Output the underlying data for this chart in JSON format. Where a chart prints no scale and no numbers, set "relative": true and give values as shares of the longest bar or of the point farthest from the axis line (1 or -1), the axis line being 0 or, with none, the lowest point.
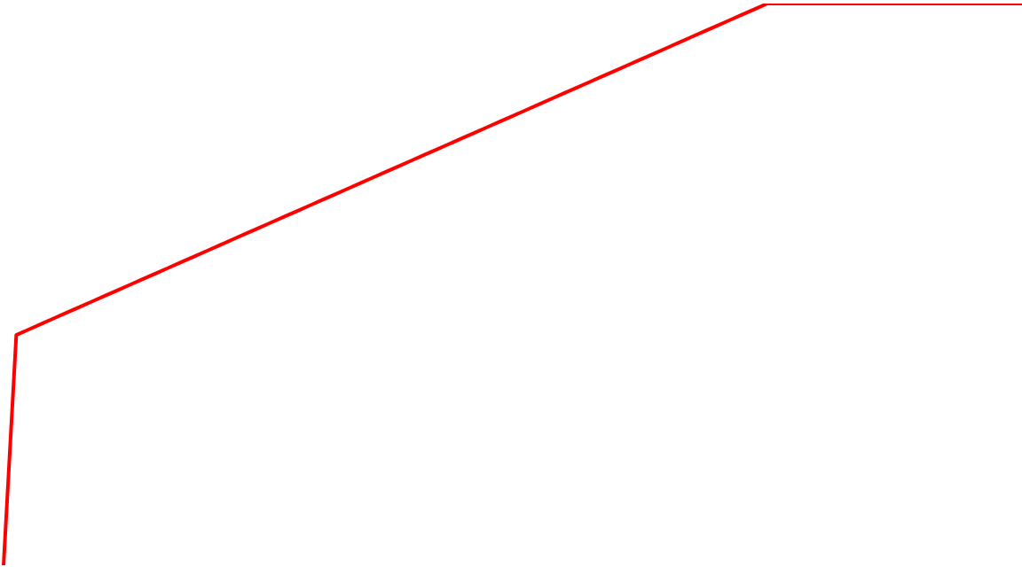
{
  "chart_data": {
    "type": "line",
    "relative": true,
    "categories": [
      null,
      null,
      null,
      null,
      null,
      null,
      null,
      null,
      null,
      null,
      null,
      null,
      null,
      null,
      null,
      null,
      null,
      null,
      null,
      null,
      null,
      null,
      null,
      null,
      null,
      null,
      null,
      null,
      null,
      null,
      null,
      null,
      null,
      null,
      null,
      null,
      null,
      null,
      null,
      null,
      null,
      null,
      null,
      null,
      null,
      null,
      null,
      null,
      null,
      null,
      null,
      null,
      null,
      null,
      null,
      null,
      null,
      null,
      null,
      null,
      null,
      null,
      null,
      null,
      null,
      null,
      null,
      null,
      null,
      null,
      null,
      null,
      null,
      null,
      null,
      null,
      null,
      null,
      null,
      null,
      null
    ],
    "series": [
      {
        "color": "#ff0000",
        "values": [
          0,
          0.41,
          0.42,
          0.43,
          0.44,
          0.45,
          0.46,
          0.47,
          0.48,
          0.49,
          0.5,
          0.51,
          0.52,
          0.53,
          0.54,
          0.55,
          0.56,
          0.57,
          0.58,
          0.59,
          0.6,
          0.61,
          0.62,
          0.63,
          0.64,
          0.65,
          0.66,
          0.67,
          0.68,
          0.69,
          0.7,
          0.71,
          0.72,
          0.73,
          0.74,
          0.75,
          0.76,
          0.77,
          0.78,
          0.79,
          0.8,
          0.81,
          0.82,
          0.83,
          0.84,
          0.85,
          0.86,
          0.87,
          0.88,
          0.89,
          0.9,
          0.91,
          0.92,
          0.93,
          0.94,
          0.95,
          0.96,
          0.97,
          0.98,
          0.99,
          1,
          1,
          1,
          1,
          1,
          1,
          1,
          1,
          1,
          1,
          1,
          1,
          1,
          1,
          1,
          1,
          1,
          1,
          1,
          1,
          1
        ]
      }
    ],
    "grid": false,
    "legend": false,
    "marker": "none",
    "line_style": "solid"
  }
}
